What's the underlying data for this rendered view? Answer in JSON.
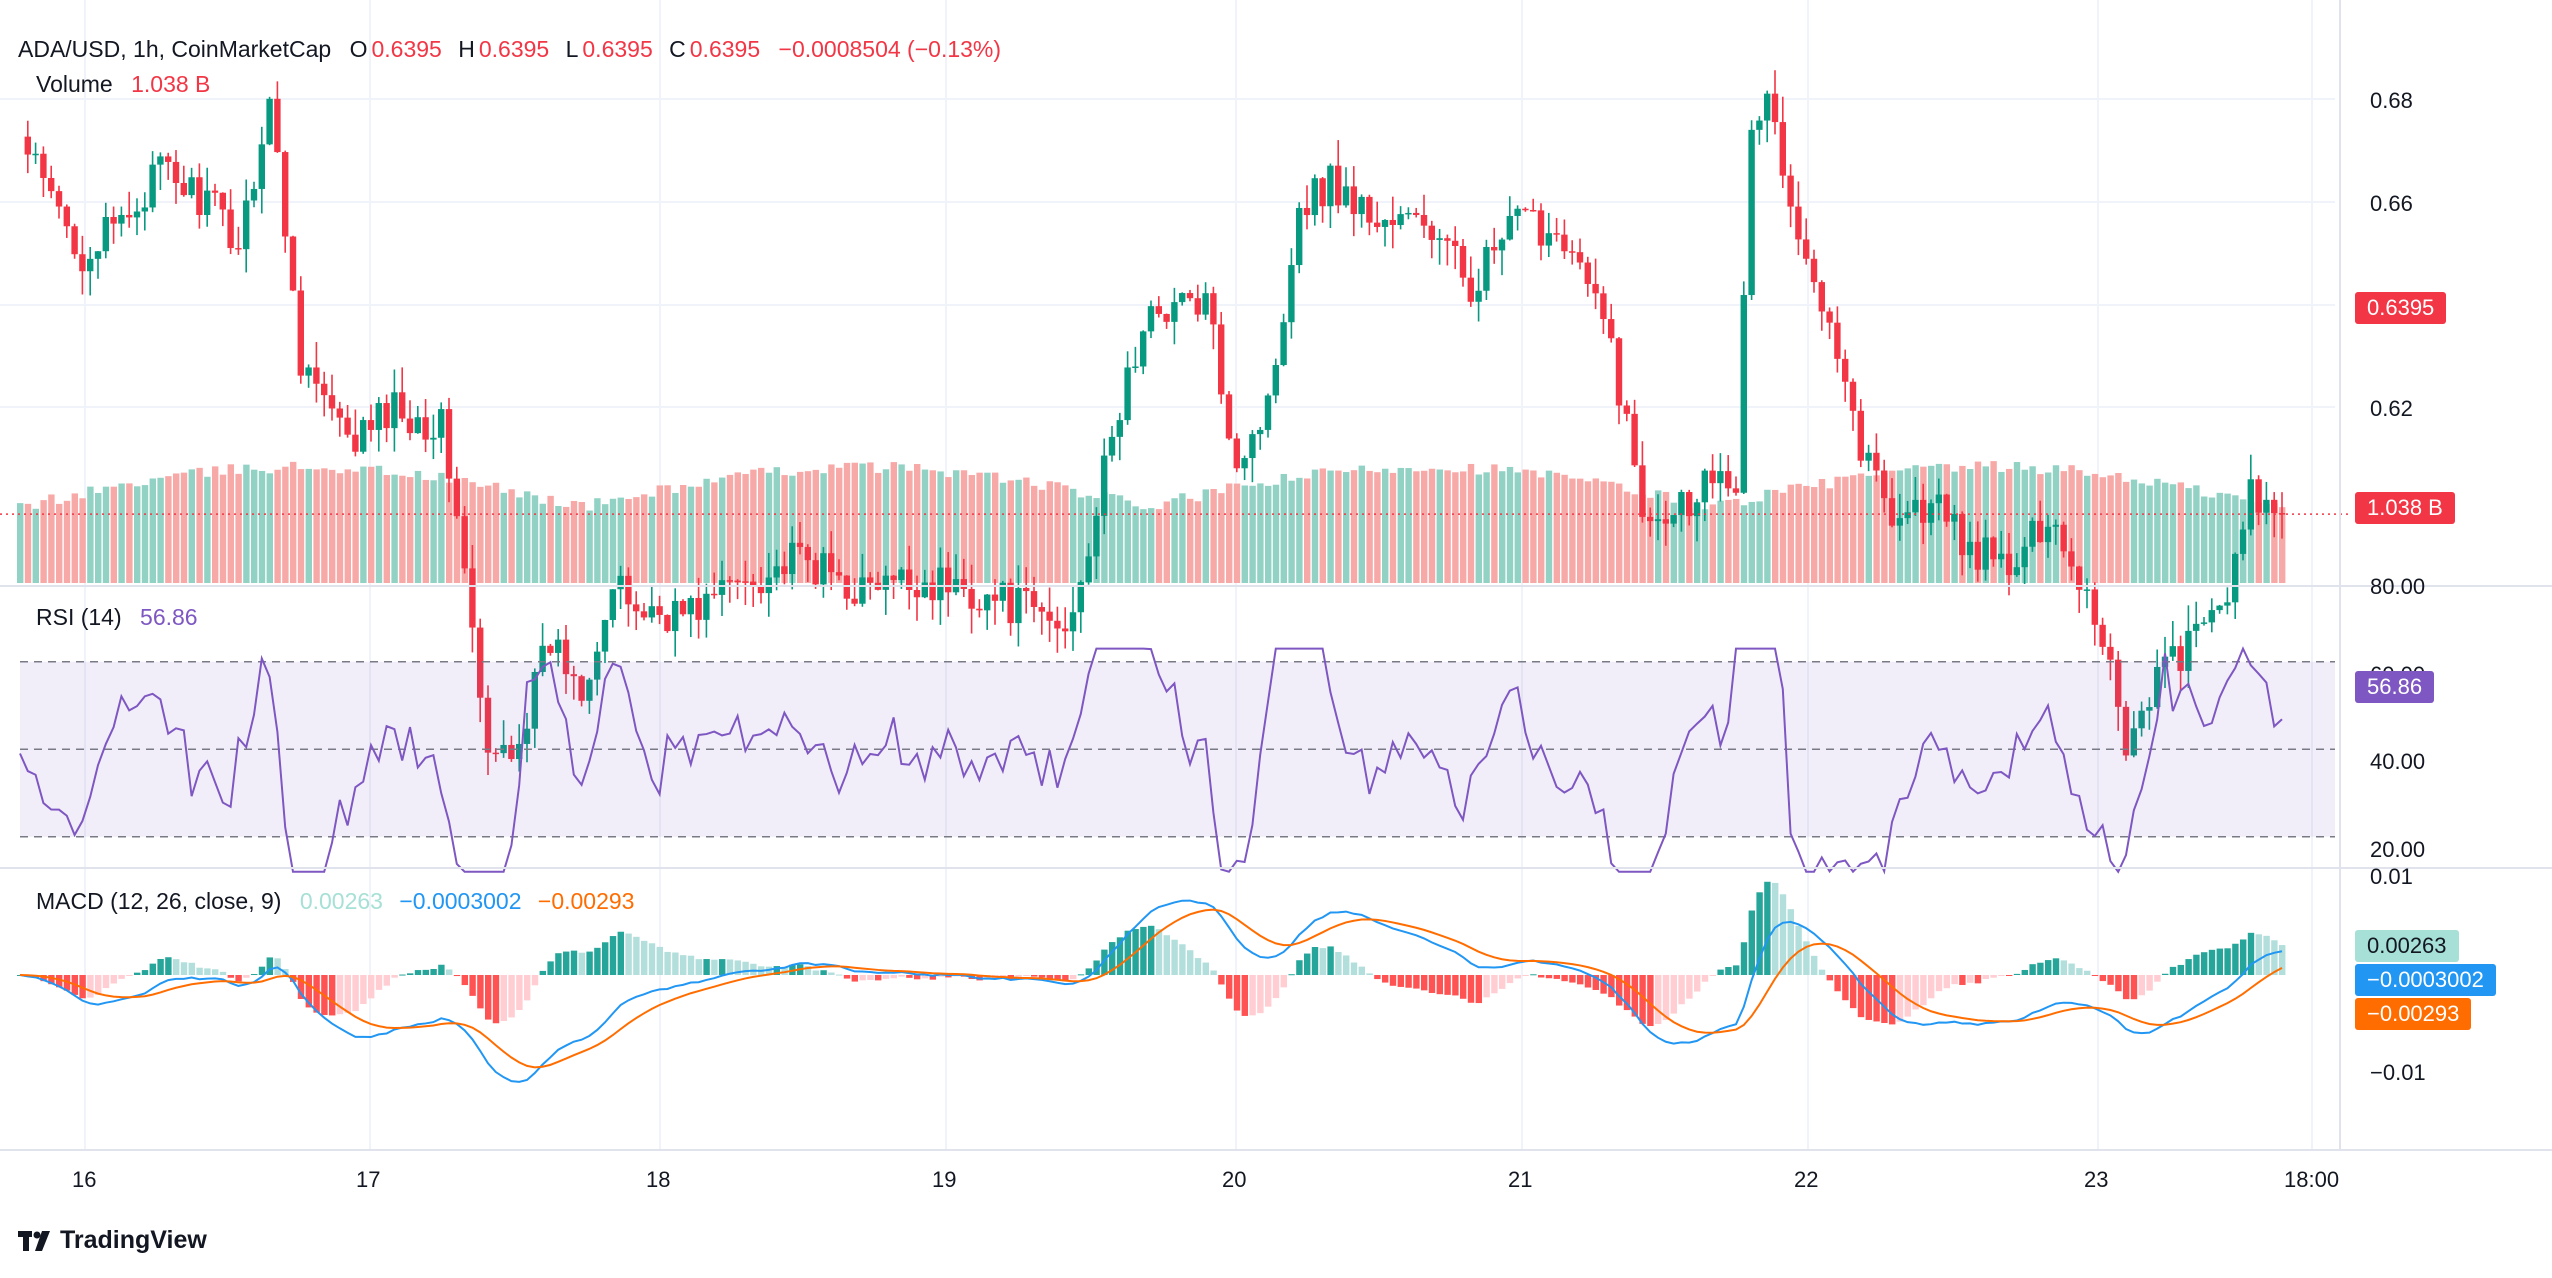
{
  "header": {
    "symbol": "ADA/USD, 1h, CoinMarketCap",
    "o_label": "O",
    "o_value": "0.6395",
    "h_label": "H",
    "h_value": "0.6395",
    "l_label": "L",
    "l_value": "0.6395",
    "c_label": "C",
    "c_value": "0.6395",
    "change": "−0.0008504 (−0.13%)",
    "volume_label": "Volume",
    "volume_value": "1.038 B"
  },
  "rsi_legend": {
    "label": "RSI (14)",
    "value": "56.86"
  },
  "macd_legend": {
    "label": "MACD (12, 26, close, 9)",
    "hist": "0.00263",
    "macd": "−0.0003002",
    "signal": "−0.00293"
  },
  "tags": {
    "price": "0.6395",
    "volume": "1.038 B",
    "rsi": "56.86",
    "macd_hist": "0.00263",
    "macd_line": "−0.0003002",
    "macd_signal": "−0.00293"
  },
  "brand": "TradingView",
  "colors": {
    "up": "#089981",
    "down": "#f23645",
    "vol_up": "#92d2c5",
    "vol_down": "#f7a9a7",
    "rsi": "#7e57c2",
    "macd": "#2196f3",
    "signal": "#ff6d00",
    "hist_up_strong": "#26a69a",
    "hist_up_weak": "#b2dfdb",
    "hist_down_strong": "#ff5252",
    "hist_down_weak": "#ffcdd2"
  },
  "chart_data": {
    "type": "candlestick",
    "x_ticks": [
      "16",
      "17",
      "18",
      "19",
      "20",
      "21",
      "22",
      "23",
      "18:00"
    ],
    "price_ticks": [
      "0.68",
      "0.66",
      "0.62"
    ],
    "rsi_ticks": [
      "80.00",
      "60.00",
      "40.00",
      "20.00"
    ],
    "macd_ticks": [
      "0.01",
      "−0.01"
    ],
    "rsi_levels": [
      70,
      50,
      30
    ],
    "price_anchors": [
      [
        0,
        0.676
      ],
      [
        4,
        0.67
      ],
      [
        8,
        0.665
      ],
      [
        12,
        0.667
      ],
      [
        18,
        0.673
      ],
      [
        24,
        0.67
      ],
      [
        28,
        0.666
      ],
      [
        32,
        0.68
      ],
      [
        36,
        0.655
      ],
      [
        42,
        0.646
      ],
      [
        48,
        0.65
      ],
      [
        54,
        0.648
      ],
      [
        56,
        0.64
      ],
      [
        60,
        0.615
      ],
      [
        64,
        0.618
      ],
      [
        68,
        0.627
      ],
      [
        72,
        0.623
      ],
      [
        76,
        0.632
      ],
      [
        80,
        0.63
      ],
      [
        86,
        0.63
      ],
      [
        92,
        0.633
      ],
      [
        100,
        0.635
      ],
      [
        108,
        0.632
      ],
      [
        116,
        0.633
      ],
      [
        122,
        0.632
      ],
      [
        130,
        0.63
      ],
      [
        134,
        0.628
      ],
      [
        138,
        0.64
      ],
      [
        142,
        0.653
      ],
      [
        146,
        0.66
      ],
      [
        152,
        0.66
      ],
      [
        156,
        0.645
      ],
      [
        160,
        0.65
      ],
      [
        164,
        0.67
      ],
      [
        168,
        0.672
      ],
      [
        174,
        0.668
      ],
      [
        180,
        0.668
      ],
      [
        186,
        0.662
      ],
      [
        192,
        0.668
      ],
      [
        198,
        0.667
      ],
      [
        204,
        0.656
      ],
      [
        208,
        0.64
      ],
      [
        214,
        0.641
      ],
      [
        218,
        0.645
      ],
      [
        220,
        0.643
      ],
      [
        222,
        0.676
      ],
      [
        224,
        0.681
      ],
      [
        228,
        0.665
      ],
      [
        232,
        0.66
      ],
      [
        236,
        0.646
      ],
      [
        240,
        0.64
      ],
      [
        246,
        0.64
      ],
      [
        250,
        0.636
      ],
      [
        256,
        0.634
      ],
      [
        260,
        0.64
      ],
      [
        266,
        0.63
      ],
      [
        268,
        0.625
      ],
      [
        270,
        0.617
      ],
      [
        274,
        0.624
      ],
      [
        280,
        0.628
      ],
      [
        284,
        0.634
      ],
      [
        286,
        0.641
      ],
      [
        290,
        0.6395
      ]
    ],
    "price_last": 0.6395,
    "volume_last": "1.038 B",
    "rsi_last": 56.86,
    "macd_last": {
      "hist": 0.00263,
      "macd": -0.0003002,
      "signal": -0.00293
    }
  }
}
